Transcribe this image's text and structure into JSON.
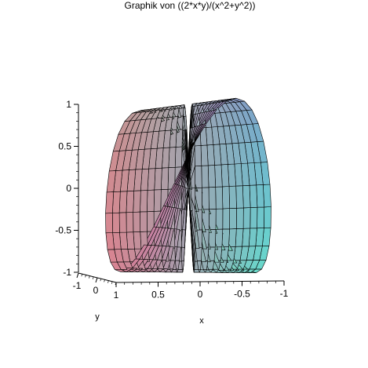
{
  "chart_data": {
    "type": "surface",
    "title": "Graphik von ((2*x*y)/(x^2+y^2))",
    "function": "(2*x*y)/(x^2+y^2)",
    "x_range": [
      -1,
      1
    ],
    "y_range": [
      -1,
      1
    ],
    "z_range": [
      -1,
      1
    ],
    "grid": "polar",
    "z_ticks": [
      {
        "value": 1,
        "label": "1"
      },
      {
        "value": 0.5,
        "label": "0.5"
      },
      {
        "value": 0,
        "label": "0"
      },
      {
        "value": -0.5,
        "label": "-0.5"
      },
      {
        "value": -1,
        "label": "-1"
      }
    ],
    "x_ticks": [
      {
        "value": 1,
        "label": "1"
      },
      {
        "value": 0.5,
        "label": "0.5"
      },
      {
        "value": 0,
        "label": "0"
      },
      {
        "value": -0.5,
        "label": "-0.5"
      },
      {
        "value": -1,
        "label": "-1"
      }
    ],
    "y_ticks": [
      {
        "value": -1,
        "label": "-1"
      },
      {
        "value": 0,
        "label": "0"
      }
    ],
    "xlabel": "x",
    "ylabel": "y"
  }
}
